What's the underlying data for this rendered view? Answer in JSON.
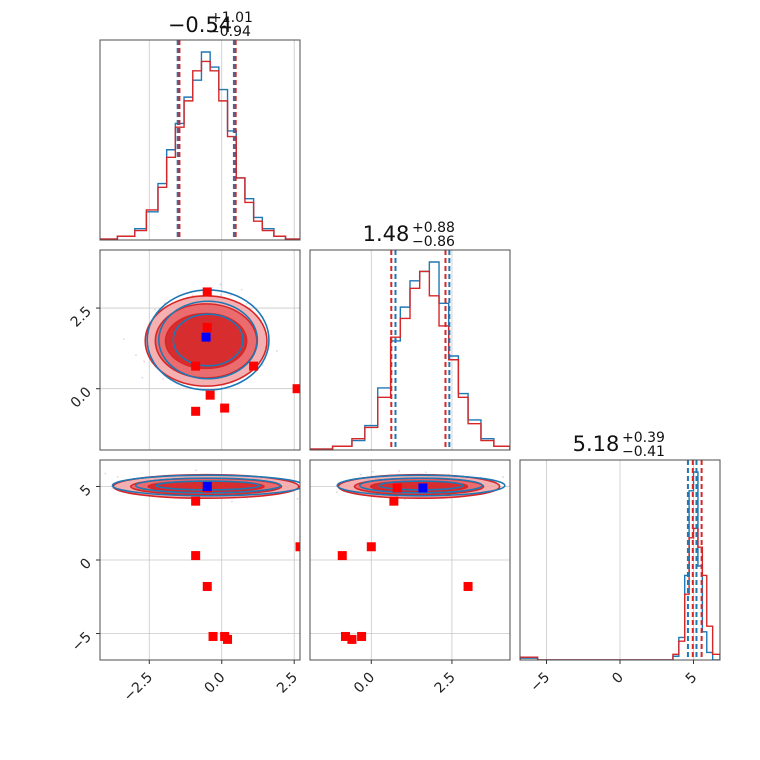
{
  "colors": {
    "blue": "#1f77b4",
    "red": "#d62728",
    "red_fill_light": "#f4a9aa",
    "marker_red": "#ff0000",
    "marker_blue": "#0000ff",
    "grid": "#c8c8c8"
  },
  "chart_data": {
    "type": "corner",
    "grid": true,
    "parameters": [
      {
        "titles": {
          "median": "−0.54",
          "plus": "+1.01",
          "minus": "−0.94"
        },
        "median": -0.54,
        "err_plus": 1.01,
        "err_minus": 0.94,
        "range": [
          -4.2,
          2.7
        ],
        "ticks": [
          -2.5,
          0.0,
          2.5
        ],
        "tick_labels": [
          "−2.5",
          "0.0",
          "2.5"
        ],
        "quantile_lines": {
          "blue": [
            -1.52,
            0.42
          ],
          "red": [
            -1.46,
            0.48
          ]
        }
      },
      {
        "titles": {
          "median": "1.48",
          "plus": "+0.88",
          "minus": "−0.86"
        },
        "median": 1.48,
        "err_plus": 0.88,
        "err_minus": 0.86,
        "range": [
          -1.9,
          4.3
        ],
        "ticks": [
          0.0,
          2.5
        ],
        "tick_labels": [
          "0.0",
          "2.5"
        ],
        "quantile_lines": {
          "blue": [
            0.75,
            2.42
          ],
          "red": [
            0.62,
            2.3
          ]
        }
      },
      {
        "titles": {
          "median": "5.18",
          "plus": "+0.39",
          "minus": "−0.41"
        },
        "median": 5.18,
        "err_plus": 0.39,
        "err_minus": 0.41,
        "range": [
          -6.8,
          6.8
        ],
        "ticks": [
          -5,
          0,
          5
        ],
        "tick_labels": [
          "−5",
          "0",
          "5"
        ],
        "quantile_lines": {
          "blue": [
            4.62,
            5.2
          ],
          "red": [
            4.95,
            5.55
          ]
        }
      }
    ],
    "marginals": [
      {
        "edges": [
          -4.2,
          -3.6,
          -3.0,
          -2.6,
          -2.2,
          -1.9,
          -1.6,
          -1.3,
          -1.0,
          -0.7,
          -0.4,
          -0.1,
          0.2,
          0.5,
          0.8,
          1.1,
          1.4,
          1.8,
          2.2,
          2.7
        ],
        "blue": [
          0.005,
          0.02,
          0.06,
          0.15,
          0.3,
          0.48,
          0.62,
          0.76,
          0.85,
          1.0,
          0.92,
          0.8,
          0.58,
          0.33,
          0.22,
          0.12,
          0.06,
          0.02,
          0.005
        ],
        "red": [
          0.005,
          0.02,
          0.05,
          0.16,
          0.28,
          0.44,
          0.6,
          0.74,
          0.9,
          0.95,
          0.9,
          0.74,
          0.55,
          0.33,
          0.2,
          0.1,
          0.05,
          0.02,
          0.005
        ]
      },
      {
        "edges": [
          -1.9,
          -1.2,
          -0.6,
          -0.2,
          0.2,
          0.6,
          0.9,
          1.2,
          1.5,
          1.8,
          2.1,
          2.4,
          2.7,
          3.0,
          3.4,
          3.8,
          4.3
        ],
        "blue": [
          0.005,
          0.02,
          0.05,
          0.13,
          0.33,
          0.58,
          0.76,
          0.9,
          0.95,
          1.0,
          0.78,
          0.5,
          0.3,
          0.16,
          0.06,
          0.02
        ],
        "red": [
          0.005,
          0.02,
          0.06,
          0.12,
          0.28,
          0.6,
          0.7,
          0.86,
          0.95,
          0.82,
          0.66,
          0.48,
          0.28,
          0.14,
          0.05,
          0.02
        ]
      },
      {
        "edges": [
          -6.8,
          -5.6,
          -4.0,
          0.0,
          3.6,
          4.0,
          4.4,
          4.7,
          5.0,
          5.3,
          5.6,
          5.9,
          6.3,
          6.8
        ],
        "blue": [
          0.01,
          0.0,
          0.0,
          0.0,
          0.02,
          0.12,
          0.45,
          0.9,
          1.0,
          0.5,
          0.15,
          0.04,
          0.0
        ],
        "red": [
          0.015,
          0.0,
          0.0,
          0.0,
          0.03,
          0.1,
          0.35,
          0.65,
          0.7,
          0.6,
          0.45,
          0.18,
          0.03
        ]
      }
    ],
    "joint_contours": [
      {
        "xi": 0,
        "yi": 1,
        "center": [
          -0.54,
          1.48
        ],
        "levels_sigma_red": [
          [
            1.4,
            0.85
          ],
          [
            1.75,
            1.15
          ],
          [
            2.1,
            1.4
          ]
        ],
        "levels_sigma_blue": [
          [
            1.2,
            0.8
          ],
          [
            1.7,
            1.2
          ],
          [
            2.1,
            1.55
          ]
        ],
        "markers_red": [
          [
            -0.5,
            3.0
          ],
          [
            -0.9,
            0.7
          ],
          [
            -0.4,
            -0.2
          ],
          [
            -0.9,
            -0.7
          ],
          [
            0.1,
            -0.6
          ],
          [
            1.1,
            0.7
          ],
          [
            2.6,
            0.0
          ],
          [
            -0.5,
            1.9
          ]
        ],
        "markers_blue": [
          [
            -0.54,
            1.6
          ]
        ]
      },
      {
        "xi": 0,
        "yi": 2,
        "center": [
          -0.54,
          5.0
        ],
        "levels_sigma_red": [
          [
            2.0,
            0.35
          ],
          [
            2.6,
            0.55
          ],
          [
            3.2,
            0.8
          ]
        ],
        "levels_sigma_blue": [
          [
            1.8,
            0.3
          ],
          [
            2.5,
            0.5
          ],
          [
            3.3,
            0.7
          ]
        ],
        "markers_red": [
          [
            -0.9,
            4.0
          ],
          [
            -0.9,
            0.3
          ],
          [
            -0.5,
            -1.8
          ],
          [
            -0.3,
            -5.2
          ],
          [
            0.1,
            -5.2
          ],
          [
            0.2,
            -5.4
          ],
          [
            -0.5,
            4.9
          ],
          [
            2.7,
            0.9
          ]
        ],
        "markers_blue": [
          [
            -0.5,
            5.0
          ]
        ]
      },
      {
        "xi": 1,
        "yi": 2,
        "center": [
          1.48,
          5.0
        ],
        "levels_sigma_red": [
          [
            1.5,
            0.35
          ],
          [
            2.0,
            0.55
          ],
          [
            2.5,
            0.8
          ]
        ],
        "levels_sigma_blue": [
          [
            1.3,
            0.3
          ],
          [
            1.9,
            0.5
          ],
          [
            2.6,
            0.7
          ]
        ],
        "markers_red": [
          [
            0.7,
            4.0
          ],
          [
            -0.9,
            0.3
          ],
          [
            0.0,
            0.9
          ],
          [
            -0.8,
            -5.2
          ],
          [
            -0.6,
            -5.4
          ],
          [
            -0.3,
            -5.2
          ],
          [
            3.0,
            -1.8
          ],
          [
            0.8,
            4.9
          ]
        ],
        "markers_blue": [
          [
            1.6,
            4.9
          ]
        ]
      }
    ]
  }
}
